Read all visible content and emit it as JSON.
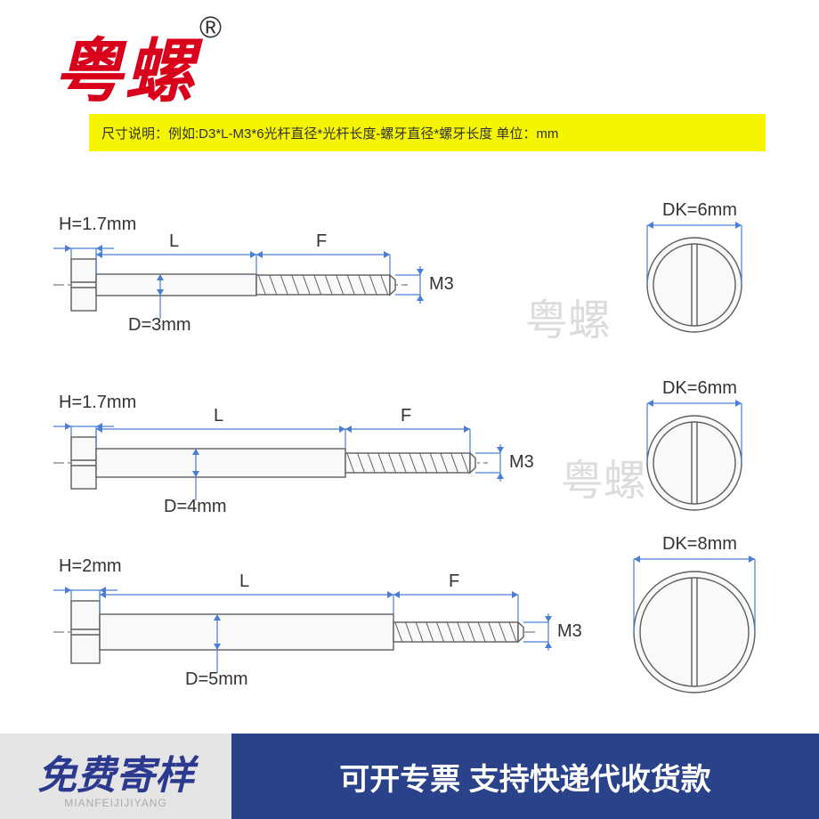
{
  "brand": {
    "name": "粤螺",
    "mark": "®"
  },
  "spec_bar": "尺寸说明：例如:D3*L-M3*6光杆直径*光杆长度-螺牙直径*螺牙长度  单位：mm",
  "watermark": "粤螺",
  "colors": {
    "brand_red": "#d9001b",
    "spec_bg": "#f6f500",
    "dim_blue": "#4a7dd4",
    "drawing_gray": "#5d5d5d",
    "footer_blue": "#294289",
    "footer_gray": "#e5e5e5",
    "footer_text_blue": "#2b3a8f"
  },
  "screws": [
    {
      "H": "H=1.7mm",
      "L": "L",
      "F": "F",
      "D": "D=3mm",
      "M": "M3",
      "DK": "DK=6mm",
      "geom": {
        "headW": 28,
        "headH": 58,
        "shankL": 180,
        "shankH": 24,
        "threadL": 150,
        "threadH": 22,
        "dkR": 53
      }
    },
    {
      "H": "H=1.7mm",
      "L": "L",
      "F": "F",
      "D": "D=4mm",
      "M": "M3",
      "DK": "DK=6mm",
      "geom": {
        "headW": 28,
        "headH": 58,
        "shankL": 280,
        "shankH": 32,
        "threadL": 140,
        "threadH": 22,
        "dkR": 53
      }
    },
    {
      "H": "H=2mm",
      "L": "L",
      "F": "F",
      "D": "D=5mm",
      "M": "M3",
      "DK": "DK=8mm",
      "geom": {
        "headW": 32,
        "headH": 70,
        "shankL": 330,
        "shankH": 40,
        "threadL": 140,
        "threadH": 22,
        "dkR": 68
      }
    }
  ],
  "footer": {
    "left_cn": "免费寄样",
    "left_en": "MIANFEIJIJIYANG",
    "right": "可开专票 支持快递代收货款"
  }
}
